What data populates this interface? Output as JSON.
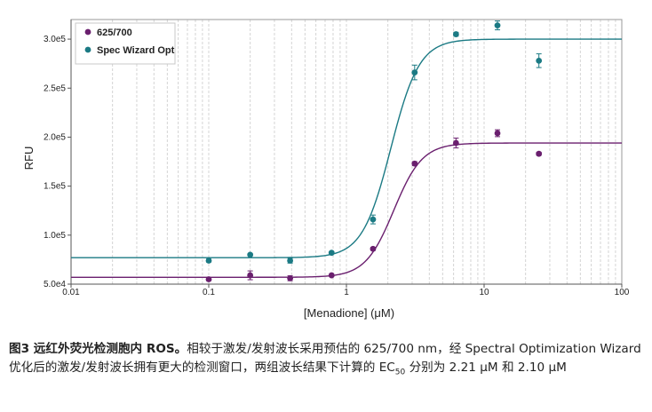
{
  "chart_data": {
    "type": "scatter",
    "xlabel": "[Menadione] (μM)",
    "ylabel": "RFU",
    "xscale": "log",
    "xlim": [
      0.01,
      100
    ],
    "ylim": [
      50000,
      320000
    ],
    "x_ticks": [
      {
        "value": 0.01,
        "label": "0.01"
      },
      {
        "value": 0.1,
        "label": "0.1"
      },
      {
        "value": 1,
        "label": "1"
      },
      {
        "value": 10,
        "label": "10"
      },
      {
        "value": 100,
        "label": "100"
      }
    ],
    "y_ticks": [
      {
        "value": 50000,
        "label": "5.0e4"
      },
      {
        "value": 100000,
        "label": "1.0e5"
      },
      {
        "value": 150000,
        "label": "1.5e5"
      },
      {
        "value": 200000,
        "label": "2.0e5"
      },
      {
        "value": 250000,
        "label": "2.5e5"
      },
      {
        "value": 300000,
        "label": "3.0e5"
      }
    ],
    "grid": "vertical minor lines",
    "legend_position": "top-left",
    "series": [
      {
        "name": "625/700",
        "color": "#6a1f6e",
        "x": [
          0.1,
          0.2,
          0.39,
          0.78,
          1.56,
          3.13,
          6.25,
          12.5,
          25
        ],
        "y": [
          55000,
          59000,
          56000,
          59000,
          86000,
          173000,
          194000,
          204000,
          183000
        ],
        "err": [
          1500,
          4500,
          2500,
          1000,
          1500,
          2000,
          5000,
          3500,
          1500
        ],
        "fit": {
          "bottom": 57000,
          "top": 194000,
          "ec50": 2.21,
          "hill": 4.2
        }
      },
      {
        "name": "Spec Wizard Opt",
        "color": "#1b7a84",
        "x": [
          0.1,
          0.2,
          0.39,
          0.78,
          1.56,
          3.13,
          6.25,
          12.5,
          25
        ],
        "y": [
          74000,
          80000,
          74000,
          82000,
          116000,
          266000,
          305000,
          314000,
          278000
        ],
        "err": [
          1500,
          1000,
          2500,
          1000,
          4500,
          7500,
          2000,
          4500,
          7000
        ],
        "fit": {
          "bottom": 77000,
          "top": 300000,
          "ec50": 2.1,
          "hill": 4.2
        }
      }
    ]
  },
  "caption": {
    "lead": "图3 远红外荧光检测胞内 ROS。",
    "text_before_ec": "相较于激发/发射波长采用预估的 625/700 nm，经 Spectral Optimization Wizard 优化后的激发/发射波长拥有更大的检测窗口，两组波长结果下计算的 EC",
    "ec_subscript": "50",
    "text_after_ec": " 分别为 2.21 μM 和 2.10 μM"
  }
}
